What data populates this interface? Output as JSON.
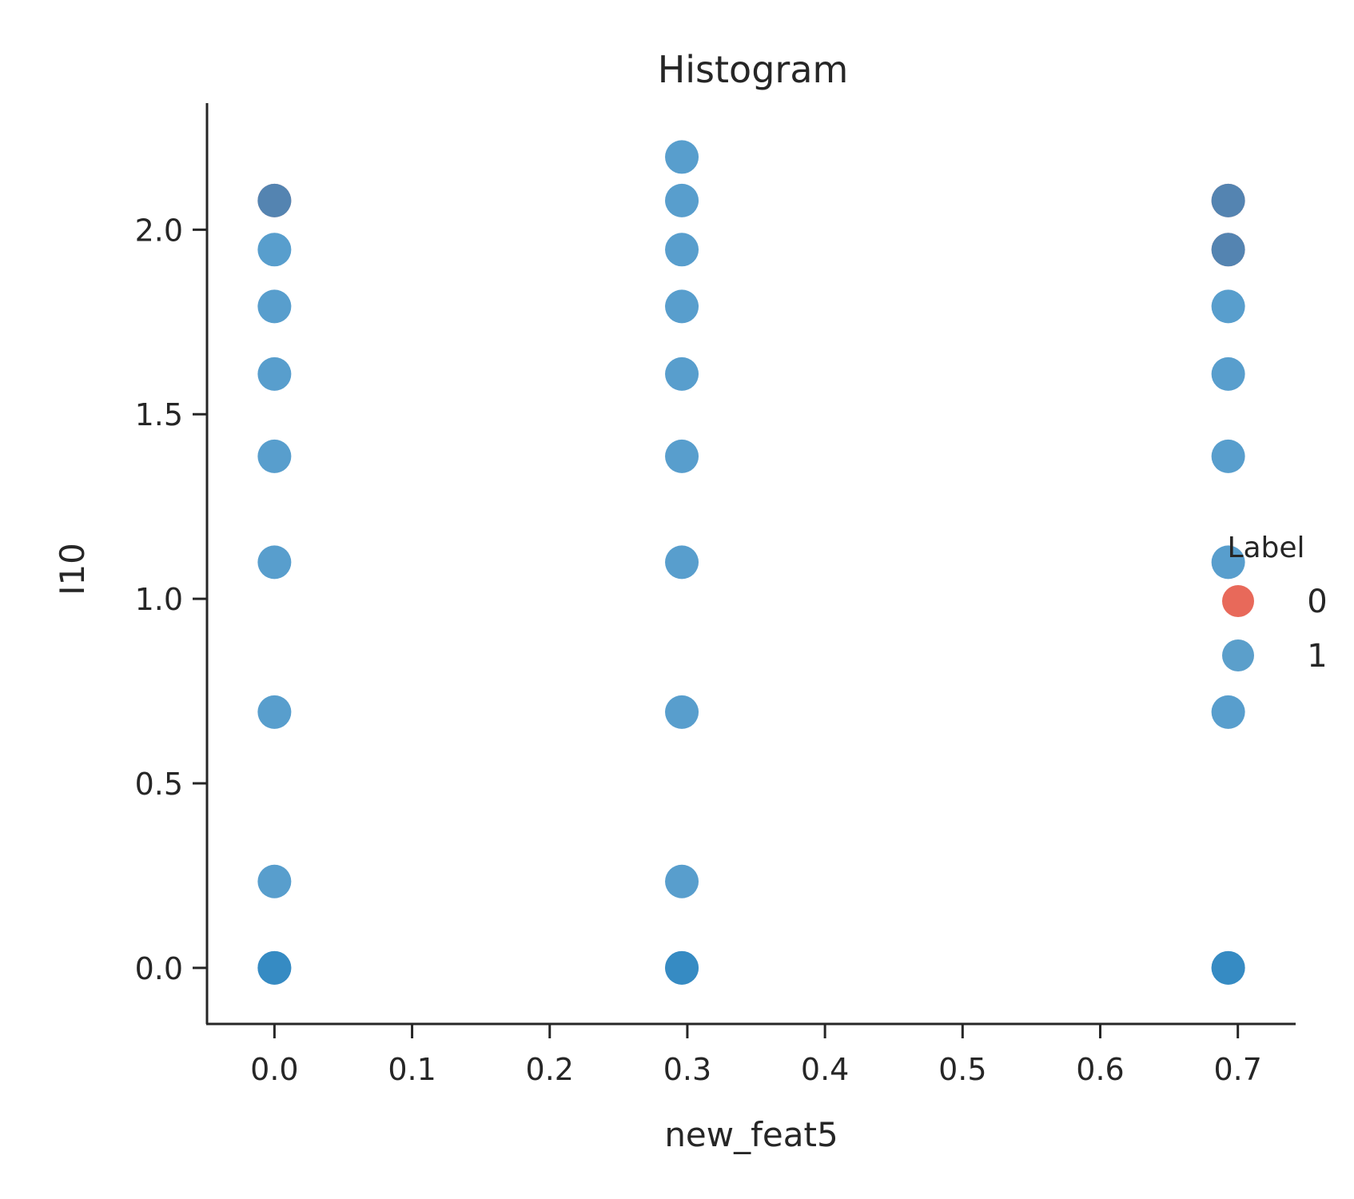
{
  "chart_data": {
    "type": "scatter",
    "title": "Histogram",
    "xlabel": "new_feat5",
    "ylabel": "I10",
    "xlim": [
      -0.049,
      0.742
    ],
    "ylim": [
      -0.152,
      2.343
    ],
    "xticks": [
      0.0,
      0.1,
      0.2,
      0.3,
      0.4,
      0.5,
      0.6,
      0.7
    ],
    "xtick_labels": [
      "0.0",
      "0.1",
      "0.2",
      "0.3",
      "0.4",
      "0.5",
      "0.6",
      "0.7"
    ],
    "yticks": [
      0.0,
      0.5,
      1.0,
      1.5,
      2.0
    ],
    "ytick_labels": [
      "0.0",
      "0.5",
      "1.0",
      "1.5",
      "2.0"
    ],
    "grid": false,
    "legend": {
      "title": "Label",
      "placement": "right",
      "entries": [
        {
          "label": "0",
          "color": "#e8695a"
        },
        {
          "label": "1",
          "color": "#5b9fcb"
        }
      ]
    },
    "series": [
      {
        "name": "0",
        "color": "#e8695a",
        "x": [
          0.0,
          0.693,
          0.693
        ],
        "y": [
          2.079,
          2.079,
          1.946
        ]
      },
      {
        "name": "1",
        "color": "#2e86c1",
        "x": [
          0.0,
          0.0,
          0.0,
          0.0,
          0.0,
          0.0,
          0.0,
          0.0,
          0.0,
          0.0,
          0.296,
          0.296,
          0.296,
          0.296,
          0.296,
          0.296,
          0.296,
          0.296,
          0.296,
          0.296,
          0.296,
          0.693,
          0.693,
          0.693,
          0.693,
          0.693,
          0.693,
          0.693,
          0.693,
          0.693
        ],
        "y": [
          2.079,
          1.946,
          1.792,
          1.609,
          1.386,
          1.099,
          0.693,
          0.234,
          0.0,
          0.0,
          2.197,
          2.079,
          1.946,
          1.792,
          1.609,
          1.386,
          1.099,
          0.693,
          0.234,
          0.0,
          0.0,
          2.079,
          1.946,
          1.792,
          1.609,
          1.386,
          1.099,
          0.693,
          0.0,
          0.0
        ]
      }
    ]
  }
}
